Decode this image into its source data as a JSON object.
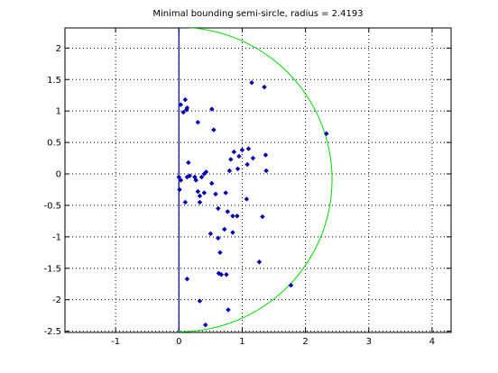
{
  "chart_data": {
    "type": "scatter",
    "title": "Minimal bounding semi-sircle, radius = 2.4193",
    "xlabel": "",
    "ylabel": "",
    "xlim": [
      -1.8,
      4.3
    ],
    "ylim": [
      -2.52,
      2.32
    ],
    "x_ticks": [
      -1,
      0,
      1,
      2,
      3,
      4
    ],
    "y_ticks": [
      -2.5,
      -2,
      -1.5,
      -1,
      -0.5,
      0,
      0.5,
      1,
      1.5,
      2
    ],
    "grid": "on",
    "grid_style": "dotted",
    "point_color": "#0000b0",
    "circle_color": "#00dd00",
    "axis_line_color": "#0000b0",
    "semicircle": {
      "center": [
        0,
        -0.09
      ],
      "radius": 2.4193
    },
    "vertical_line_x": 0,
    "points": [
      [
        0.0,
        -0.05
      ],
      [
        0.01,
        -0.25
      ],
      [
        0.03,
        -0.1
      ],
      [
        0.03,
        1.1
      ],
      [
        0.07,
        0.98
      ],
      [
        0.1,
        1.18
      ],
      [
        0.12,
        1.02
      ],
      [
        0.13,
        1.05
      ],
      [
        0.15,
        0.18
      ],
      [
        0.13,
        -0.05
      ],
      [
        0.17,
        -0.03
      ],
      [
        0.1,
        -0.45
      ],
      [
        0.25,
        -0.05
      ],
      [
        0.27,
        -0.1
      ],
      [
        0.3,
        0.82
      ],
      [
        0.3,
        -0.28
      ],
      [
        0.33,
        -0.35
      ],
      [
        0.36,
        -0.05
      ],
      [
        0.4,
        0.0
      ],
      [
        0.43,
        0.03
      ],
      [
        0.4,
        -0.3
      ],
      [
        0.33,
        -0.45
      ],
      [
        0.13,
        -1.67
      ],
      [
        0.33,
        -2.02
      ],
      [
        0.42,
        -2.4
      ],
      [
        0.5,
        -0.95
      ],
      [
        0.52,
        1.03
      ],
      [
        0.55,
        0.7
      ],
      [
        0.52,
        -0.15
      ],
      [
        0.58,
        -0.32
      ],
      [
        0.62,
        -0.55
      ],
      [
        0.62,
        -1.02
      ],
      [
        0.63,
        -1.58
      ],
      [
        0.67,
        -1.6
      ],
      [
        0.65,
        -1.25
      ],
      [
        0.72,
        -0.88
      ],
      [
        0.75,
        -1.6
      ],
      [
        0.78,
        -2.16
      ],
      [
        0.74,
        -0.3
      ],
      [
        0.77,
        -0.6
      ],
      [
        0.85,
        -0.67
      ],
      [
        0.85,
        -0.93
      ],
      [
        0.92,
        -0.67
      ],
      [
        0.82,
        0.23
      ],
      [
        0.8,
        0.05
      ],
      [
        0.87,
        0.35
      ],
      [
        0.95,
        0.28
      ],
      [
        0.93,
        0.08
      ],
      [
        1.0,
        0.38
      ],
      [
        1.07,
        -0.4
      ],
      [
        1.1,
        0.4
      ],
      [
        1.08,
        0.15
      ],
      [
        1.15,
        1.45
      ],
      [
        1.17,
        0.25
      ],
      [
        1.27,
        -1.4
      ],
      [
        1.32,
        -0.68
      ],
      [
        1.35,
        1.38
      ],
      [
        1.37,
        0.3
      ],
      [
        1.38,
        0.05
      ],
      [
        1.77,
        -1.77
      ],
      [
        2.33,
        0.64
      ]
    ]
  }
}
